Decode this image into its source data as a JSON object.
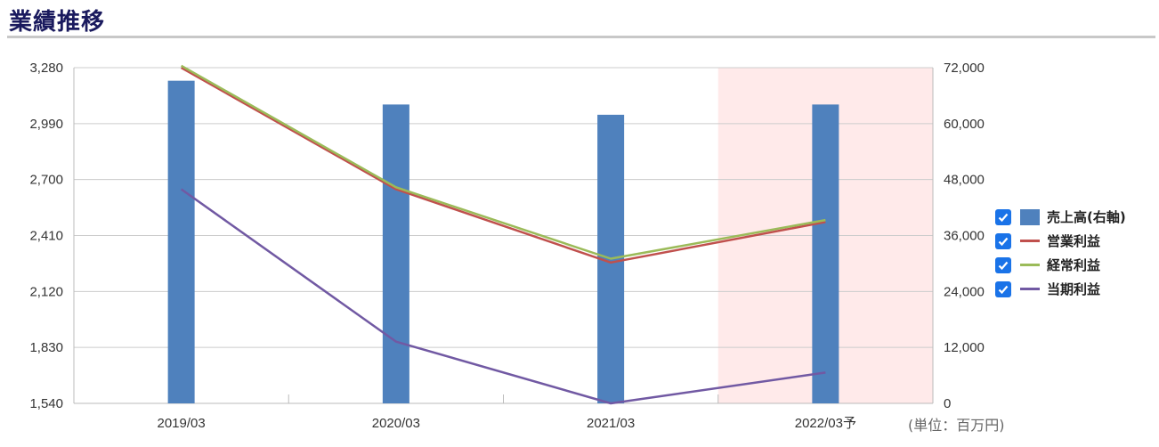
{
  "title": "業績推移",
  "unit_label": "(単位：百万円)",
  "legend": [
    {
      "label": "売上高(右軸)",
      "kind": "bar",
      "color": "#4f81bd",
      "checked": true
    },
    {
      "label": "営業利益",
      "kind": "line",
      "color": "#c0504d",
      "checked": true
    },
    {
      "label": "経常利益",
      "kind": "line",
      "color": "#9bbb59",
      "checked": true
    },
    {
      "label": "当期利益",
      "kind": "line",
      "color": "#7159a3",
      "checked": true
    }
  ],
  "chart_data": {
    "type": "bar",
    "categories": [
      "2019/03",
      "2020/03",
      "2021/03",
      "2022/03予"
    ],
    "forecast_category": "2022/03予",
    "forecast_shading_color": "#ffeaea",
    "left_axis": {
      "min": 1540,
      "max": 3280,
      "ticks": [
        "3,280",
        "2,990",
        "2,700",
        "2,410",
        "2,120",
        "1,830",
        "1,540"
      ]
    },
    "right_axis": {
      "min": 0,
      "max": 72000,
      "ticks": [
        "72,000",
        "60,000",
        "48,000",
        "36,000",
        "24,000",
        "12,000",
        "0"
      ]
    },
    "bar_series": {
      "name": "売上高(右軸)",
      "axis": "right",
      "color": "#4f81bd",
      "values": [
        69200,
        64100,
        61900,
        64100
      ]
    },
    "line_series": [
      {
        "name": "営業利益",
        "axis": "left",
        "color": "#c0504d",
        "values": [
          3280,
          2650,
          2270,
          2480
        ]
      },
      {
        "name": "経常利益",
        "axis": "left",
        "color": "#9bbb59",
        "values": [
          3290,
          2660,
          2290,
          2490
        ]
      },
      {
        "name": "当期利益",
        "axis": "left",
        "color": "#7159a3",
        "values": [
          2650,
          1860,
          1540,
          1700
        ]
      }
    ],
    "grid": true
  }
}
